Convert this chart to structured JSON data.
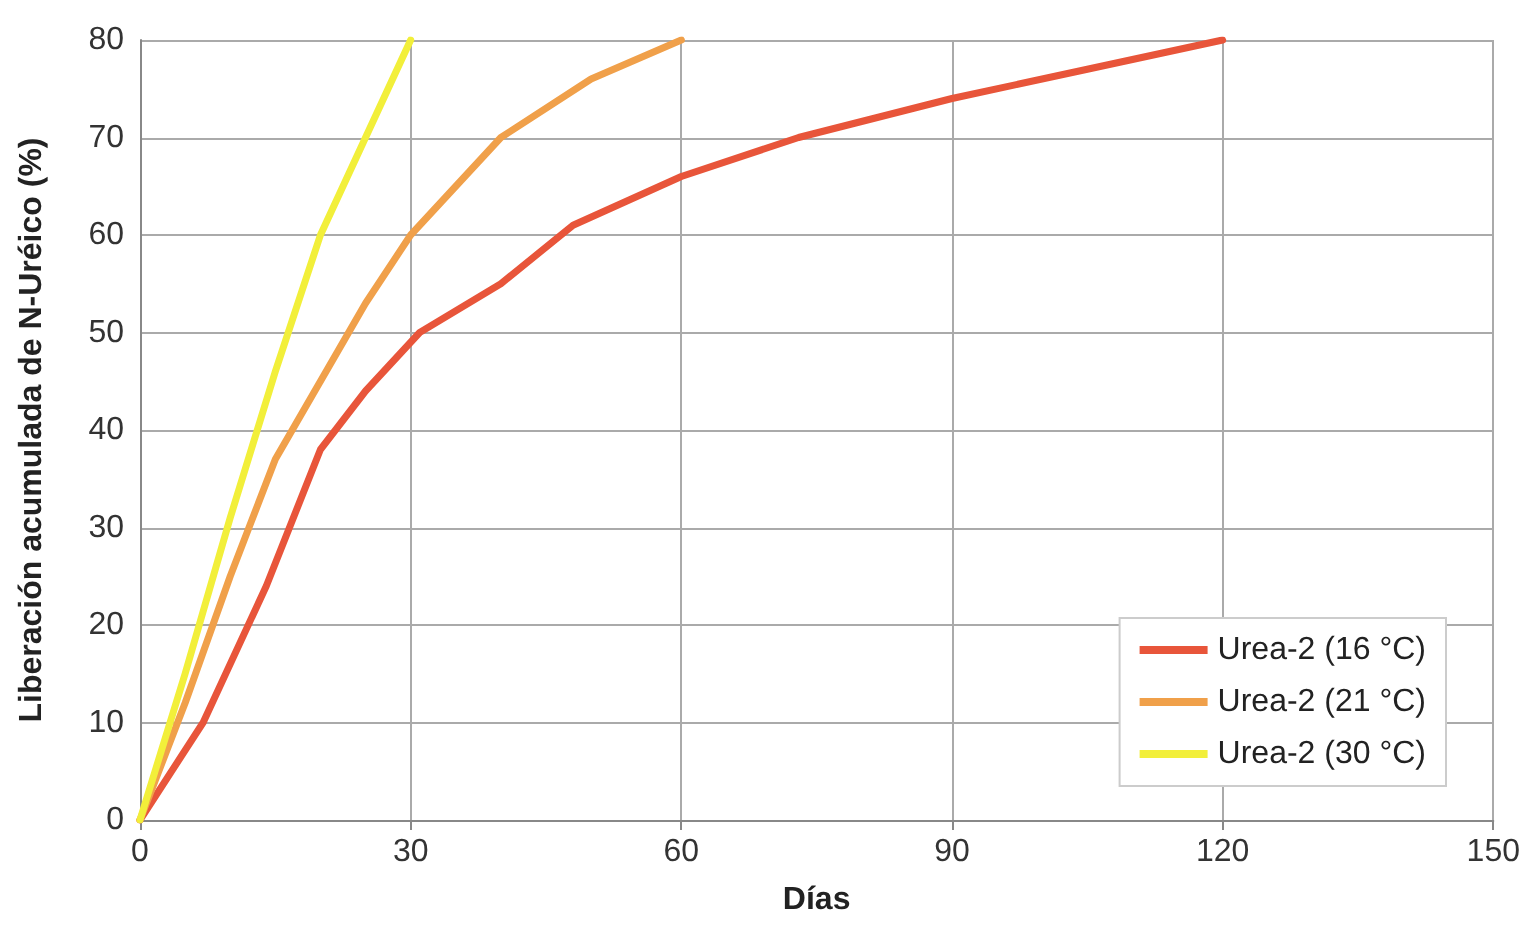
{
  "chart_data": {
    "type": "line",
    "xlabel": "Días",
    "ylabel": "Liberación acumulada de N-Uréico (%)",
    "xlim": [
      0,
      150
    ],
    "xticks": [
      0,
      30,
      60,
      90,
      120,
      150
    ],
    "ylim": [
      0,
      80
    ],
    "yticks": [
      0,
      10,
      20,
      30,
      40,
      50,
      60,
      70,
      80
    ],
    "grid": true,
    "legend": "bottom right",
    "marker": "none",
    "line_style": "solid",
    "series": [
      {
        "name": "Urea-2 (16 °C)",
        "color": "#e8553a",
        "x": [
          0,
          7,
          14,
          20,
          25,
          31,
          40,
          48,
          60,
          73,
          90,
          105,
          120
        ],
        "values": [
          0,
          10,
          24,
          38,
          44,
          50,
          55,
          61,
          66,
          70,
          74,
          77,
          80
        ]
      },
      {
        "name": "Urea-2 (21 °C)",
        "color": "#f0a04a",
        "x": [
          0,
          5,
          10,
          15,
          20,
          25,
          30,
          40,
          50,
          60
        ],
        "values": [
          0,
          12,
          25,
          37,
          45,
          53,
          60,
          70,
          76,
          80
        ]
      },
      {
        "name": "Urea-2 (30 °C)",
        "color": "#f2ef3a",
        "x": [
          0,
          5,
          10,
          15,
          20,
          25,
          30
        ],
        "values": [
          0,
          15,
          31,
          46,
          60,
          70,
          80
        ]
      }
    ]
  }
}
